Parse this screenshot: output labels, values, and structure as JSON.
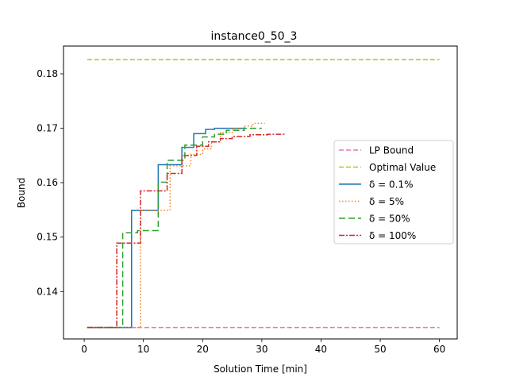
{
  "chart_data": {
    "type": "line",
    "title": "instance0_50_3",
    "xlabel": "Solution Time [min]",
    "ylabel": "Bound",
    "xlim": [
      -3.5,
      63
    ],
    "ylim": [
      0.1313,
      0.1851
    ],
    "xticks": [
      0,
      10,
      20,
      30,
      40,
      50,
      60
    ],
    "xtick_labels": [
      "0",
      "10",
      "20",
      "30",
      "40",
      "50",
      "60"
    ],
    "yticks": [
      0.14,
      0.15,
      0.16,
      0.17,
      0.18
    ],
    "ytick_labels": [
      "0.14",
      "0.15",
      "0.16",
      "0.17",
      "0.18"
    ],
    "grid": false,
    "legend_position": "center-right",
    "series": [
      {
        "name": "LP Bound",
        "color": "#e377c2",
        "dash": "6,3",
        "step": false,
        "x": [
          0.5,
          60
        ],
        "y": [
          0.1334,
          0.1334
        ]
      },
      {
        "name": "Optimal Value",
        "color": "#bcbd22",
        "dash": "6,3",
        "step": false,
        "x": [
          0.5,
          60
        ],
        "y": [
          0.1826,
          0.1826
        ]
      },
      {
        "name": "δ = 0.1%",
        "color": "#1f77b4",
        "dash": "",
        "step": true,
        "x": [
          0.5,
          8,
          12.5,
          16.5,
          18.5,
          20.5,
          22,
          27
        ],
        "y": [
          0.1334,
          0.1549,
          0.1633,
          0.1665,
          0.169,
          0.1698,
          0.17,
          0.1702
        ]
      },
      {
        "name": "δ = 5%",
        "color": "#ff7f0e",
        "dash": "1.5,2.5",
        "step": true,
        "x": [
          0.5,
          9.5,
          14.5,
          18,
          20,
          21.5,
          23,
          25,
          27,
          28.5,
          30.5
        ],
        "y": [
          0.1334,
          0.1549,
          0.1631,
          0.1652,
          0.1662,
          0.1675,
          0.1692,
          0.1699,
          0.1704,
          0.1709,
          0.1709
        ]
      },
      {
        "name": "δ = 50%",
        "color": "#2ca02c",
        "dash": "8,4",
        "step": true,
        "x": [
          0.5,
          6.5,
          9,
          12.5,
          14,
          17,
          20,
          22,
          24,
          27,
          30
        ],
        "y": [
          0.1334,
          0.1508,
          0.1512,
          0.1601,
          0.1641,
          0.1669,
          0.1684,
          0.1689,
          0.1696,
          0.17,
          0.17
        ]
      },
      {
        "name": "δ = 100%",
        "color": "#d62728",
        "dash": "7,2,2,2",
        "step": true,
        "x": [
          0.5,
          5.5,
          9.5,
          14,
          16.5,
          19,
          21,
          23,
          25,
          28,
          31,
          34
        ],
        "y": [
          0.1334,
          0.1489,
          0.1585,
          0.1617,
          0.165,
          0.1667,
          0.1675,
          0.1681,
          0.1685,
          0.1688,
          0.1689,
          0.169
        ]
      }
    ]
  }
}
